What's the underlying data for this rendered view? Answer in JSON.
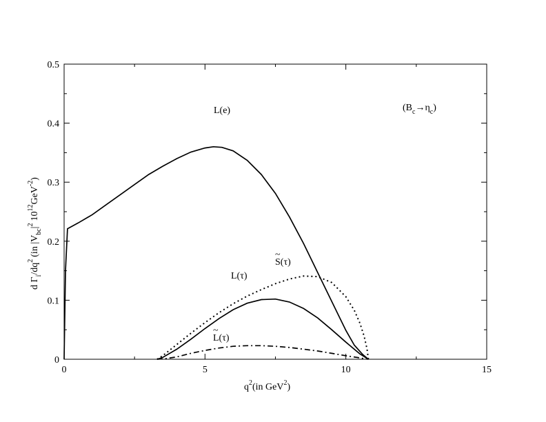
{
  "chart_data": {
    "type": "line",
    "title": "",
    "xlabel": {
      "main": "q",
      "sup": "2",
      "paren": "(in GeV",
      "paren_sup": "2",
      "close": ")"
    },
    "ylabel": {
      "t1": "d Γ",
      "t1_sub": "i",
      "t2": "/dq",
      "t2_sup": "2",
      "t3": "(in |V",
      "t3_sub": "bc",
      "t4": "|",
      "t4_sup": "2",
      "t5": "10",
      "t5_sup": "12",
      "t6": "GeV",
      "t6_sup": "-2",
      "t7": ")"
    },
    "xlim": [
      0,
      15
    ],
    "ylim": [
      0,
      0.5
    ],
    "xticks": [
      0,
      5,
      10,
      15
    ],
    "xtick_labels": [
      "0",
      "5",
      "10",
      "15"
    ],
    "yticks": [
      0,
      0.1,
      0.2,
      0.3,
      0.4,
      0.5
    ],
    "ytick_labels": [
      "0",
      "0.1",
      "0.2",
      "0.3",
      "0.4",
      "0.5"
    ],
    "grid": false,
    "legend": "none",
    "annotations": {
      "process": {
        "open": "(B",
        "sub1": "c",
        "arrow": "→η",
        "sub2": "c",
        "close": ")"
      },
      "Le": "L(e)",
      "Ltau": "L(τ)",
      "Stau": "S(τ)",
      "Ltilde": "L(τ)"
    },
    "series": [
      {
        "style": "solid",
        "x": [
          0.0,
          0.05,
          0.12,
          0.5,
          1,
          1.5,
          2,
          2.5,
          3,
          3.5,
          4,
          4.5,
          5,
          5.3,
          5.6,
          6,
          6.5,
          7,
          7.5,
          8,
          8.5,
          9,
          9.5,
          10,
          10.3,
          10.6,
          10.8
        ],
        "y": [
          0.0,
          0.15,
          0.221,
          0.231,
          0.245,
          0.262,
          0.279,
          0.296,
          0.313,
          0.327,
          0.34,
          0.351,
          0.358,
          0.36,
          0.359,
          0.353,
          0.337,
          0.313,
          0.281,
          0.241,
          0.196,
          0.147,
          0.098,
          0.049,
          0.024,
          0.008,
          0.0
        ]
      },
      {
        "style": "solid",
        "x": [
          3.3,
          3.5,
          4,
          4.5,
          5,
          5.5,
          6,
          6.5,
          7,
          7.5,
          8,
          8.5,
          9,
          9.5,
          10,
          10.5,
          10.8
        ],
        "y": [
          0.0,
          0.003,
          0.017,
          0.034,
          0.052,
          0.069,
          0.084,
          0.095,
          0.101,
          0.102,
          0.097,
          0.086,
          0.07,
          0.05,
          0.029,
          0.009,
          0.0
        ]
      },
      {
        "style": "dotted",
        "x": [
          3.3,
          3.5,
          4,
          4.5,
          5,
          5.5,
          6,
          6.5,
          7,
          7.5,
          8,
          8.5,
          9,
          9.5,
          10,
          10.3,
          10.5,
          10.65,
          10.75,
          10.8
        ],
        "y": [
          0.0,
          0.006,
          0.025,
          0.044,
          0.062,
          0.079,
          0.094,
          0.107,
          0.118,
          0.128,
          0.136,
          0.141,
          0.14,
          0.13,
          0.106,
          0.083,
          0.061,
          0.039,
          0.018,
          0.0
        ]
      },
      {
        "style": "dashdot",
        "x": [
          3.3,
          3.6,
          4,
          4.5,
          5,
          5.5,
          6,
          6.5,
          7,
          7.5,
          8,
          8.5,
          9,
          9.5,
          10,
          10.4,
          10.8
        ],
        "y": [
          0.0,
          0.001,
          0.004,
          0.01,
          0.015,
          0.019,
          0.022,
          0.023,
          0.023,
          0.022,
          0.02,
          0.017,
          0.014,
          0.01,
          0.006,
          0.003,
          0.0
        ]
      }
    ]
  }
}
